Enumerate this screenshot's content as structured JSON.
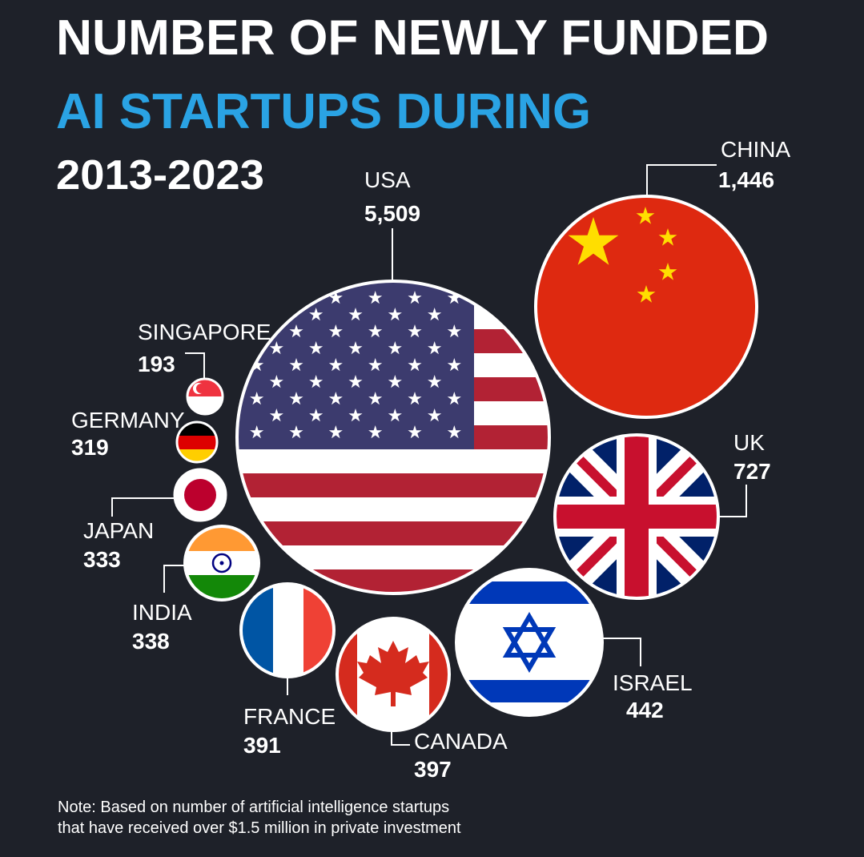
{
  "title": {
    "line1": "NUMBER OF NEWLY FUNDED",
    "line2": "AI STARTUPS DURING",
    "line3": "2013-2023"
  },
  "note": {
    "line1": "Note: Based on number of artificial intelligence startups",
    "line2": "that have received over $1.5 million in private investment"
  },
  "colors": {
    "background": "#1e2129",
    "title_accent": "#2aa3e4",
    "text": "#ffffff"
  },
  "chart_data": {
    "type": "bubble",
    "encoding": "circle area proportional to number of startups; each bubble filled with the country's flag",
    "countries": [
      {
        "name": "USA",
        "value": 5509,
        "value_label": "5,509",
        "flag": "usa-flag"
      },
      {
        "name": "CHINA",
        "value": 1446,
        "value_label": "1,446",
        "flag": "china-flag"
      },
      {
        "name": "UK",
        "value": 727,
        "value_label": "727",
        "flag": "uk-flag"
      },
      {
        "name": "ISRAEL",
        "value": 442,
        "value_label": "442",
        "flag": "israel-flag"
      },
      {
        "name": "CANADA",
        "value": 397,
        "value_label": "397",
        "flag": "canada-flag"
      },
      {
        "name": "FRANCE",
        "value": 391,
        "value_label": "391",
        "flag": "france-flag"
      },
      {
        "name": "INDIA",
        "value": 338,
        "value_label": "338",
        "flag": "india-flag"
      },
      {
        "name": "JAPAN",
        "value": 333,
        "value_label": "333",
        "flag": "japan-flag"
      },
      {
        "name": "GERMANY",
        "value": 319,
        "value_label": "319",
        "flag": "germany-flag"
      },
      {
        "name": "SINGAPORE",
        "value": 193,
        "value_label": "193",
        "flag": "singapore-flag"
      }
    ]
  }
}
